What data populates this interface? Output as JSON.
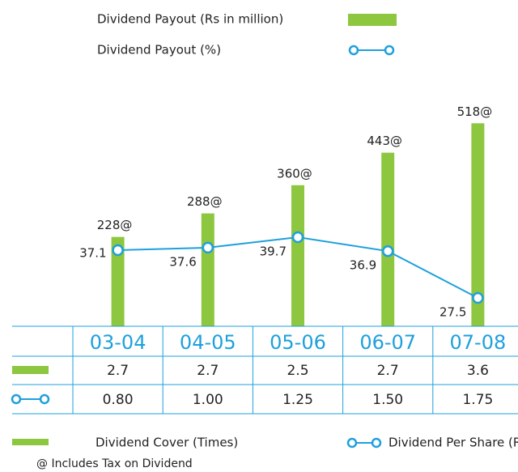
{
  "chart_data": {
    "type": "bar",
    "categories": [
      "03-04",
      "04-05",
      "05-06",
      "06-07",
      "07-08"
    ],
    "series": [
      {
        "name": "Dividend Payout (Rs in million)",
        "type": "bar",
        "color": "#8dc63f",
        "values": [
          228,
          288,
          360,
          443,
          518
        ],
        "value_labels": [
          "228@",
          "288@",
          "360@",
          "443@",
          "518@"
        ]
      },
      {
        "name": "Dividend Payout (%)",
        "type": "line",
        "axis": "y2",
        "color": "#1ea0dc",
        "values": [
          37.1,
          37.6,
          39.7,
          36.9,
          27.5
        ]
      }
    ],
    "ylim": [
      0,
      626
    ],
    "y2lim": [
      21.8,
      71.1
    ],
    "table": {
      "rows": [
        [
          "2.7",
          "2.7",
          "2.5",
          "2.7",
          "3.6"
        ],
        [
          "0.80",
          "1.00",
          "1.25",
          "1.50",
          "1.75"
        ]
      ],
      "legend": [
        "Dividend Cover (Times)",
        "Dividend Per Share (Rs)"
      ]
    },
    "footnote": "@ Includes Tax on Dividend"
  }
}
